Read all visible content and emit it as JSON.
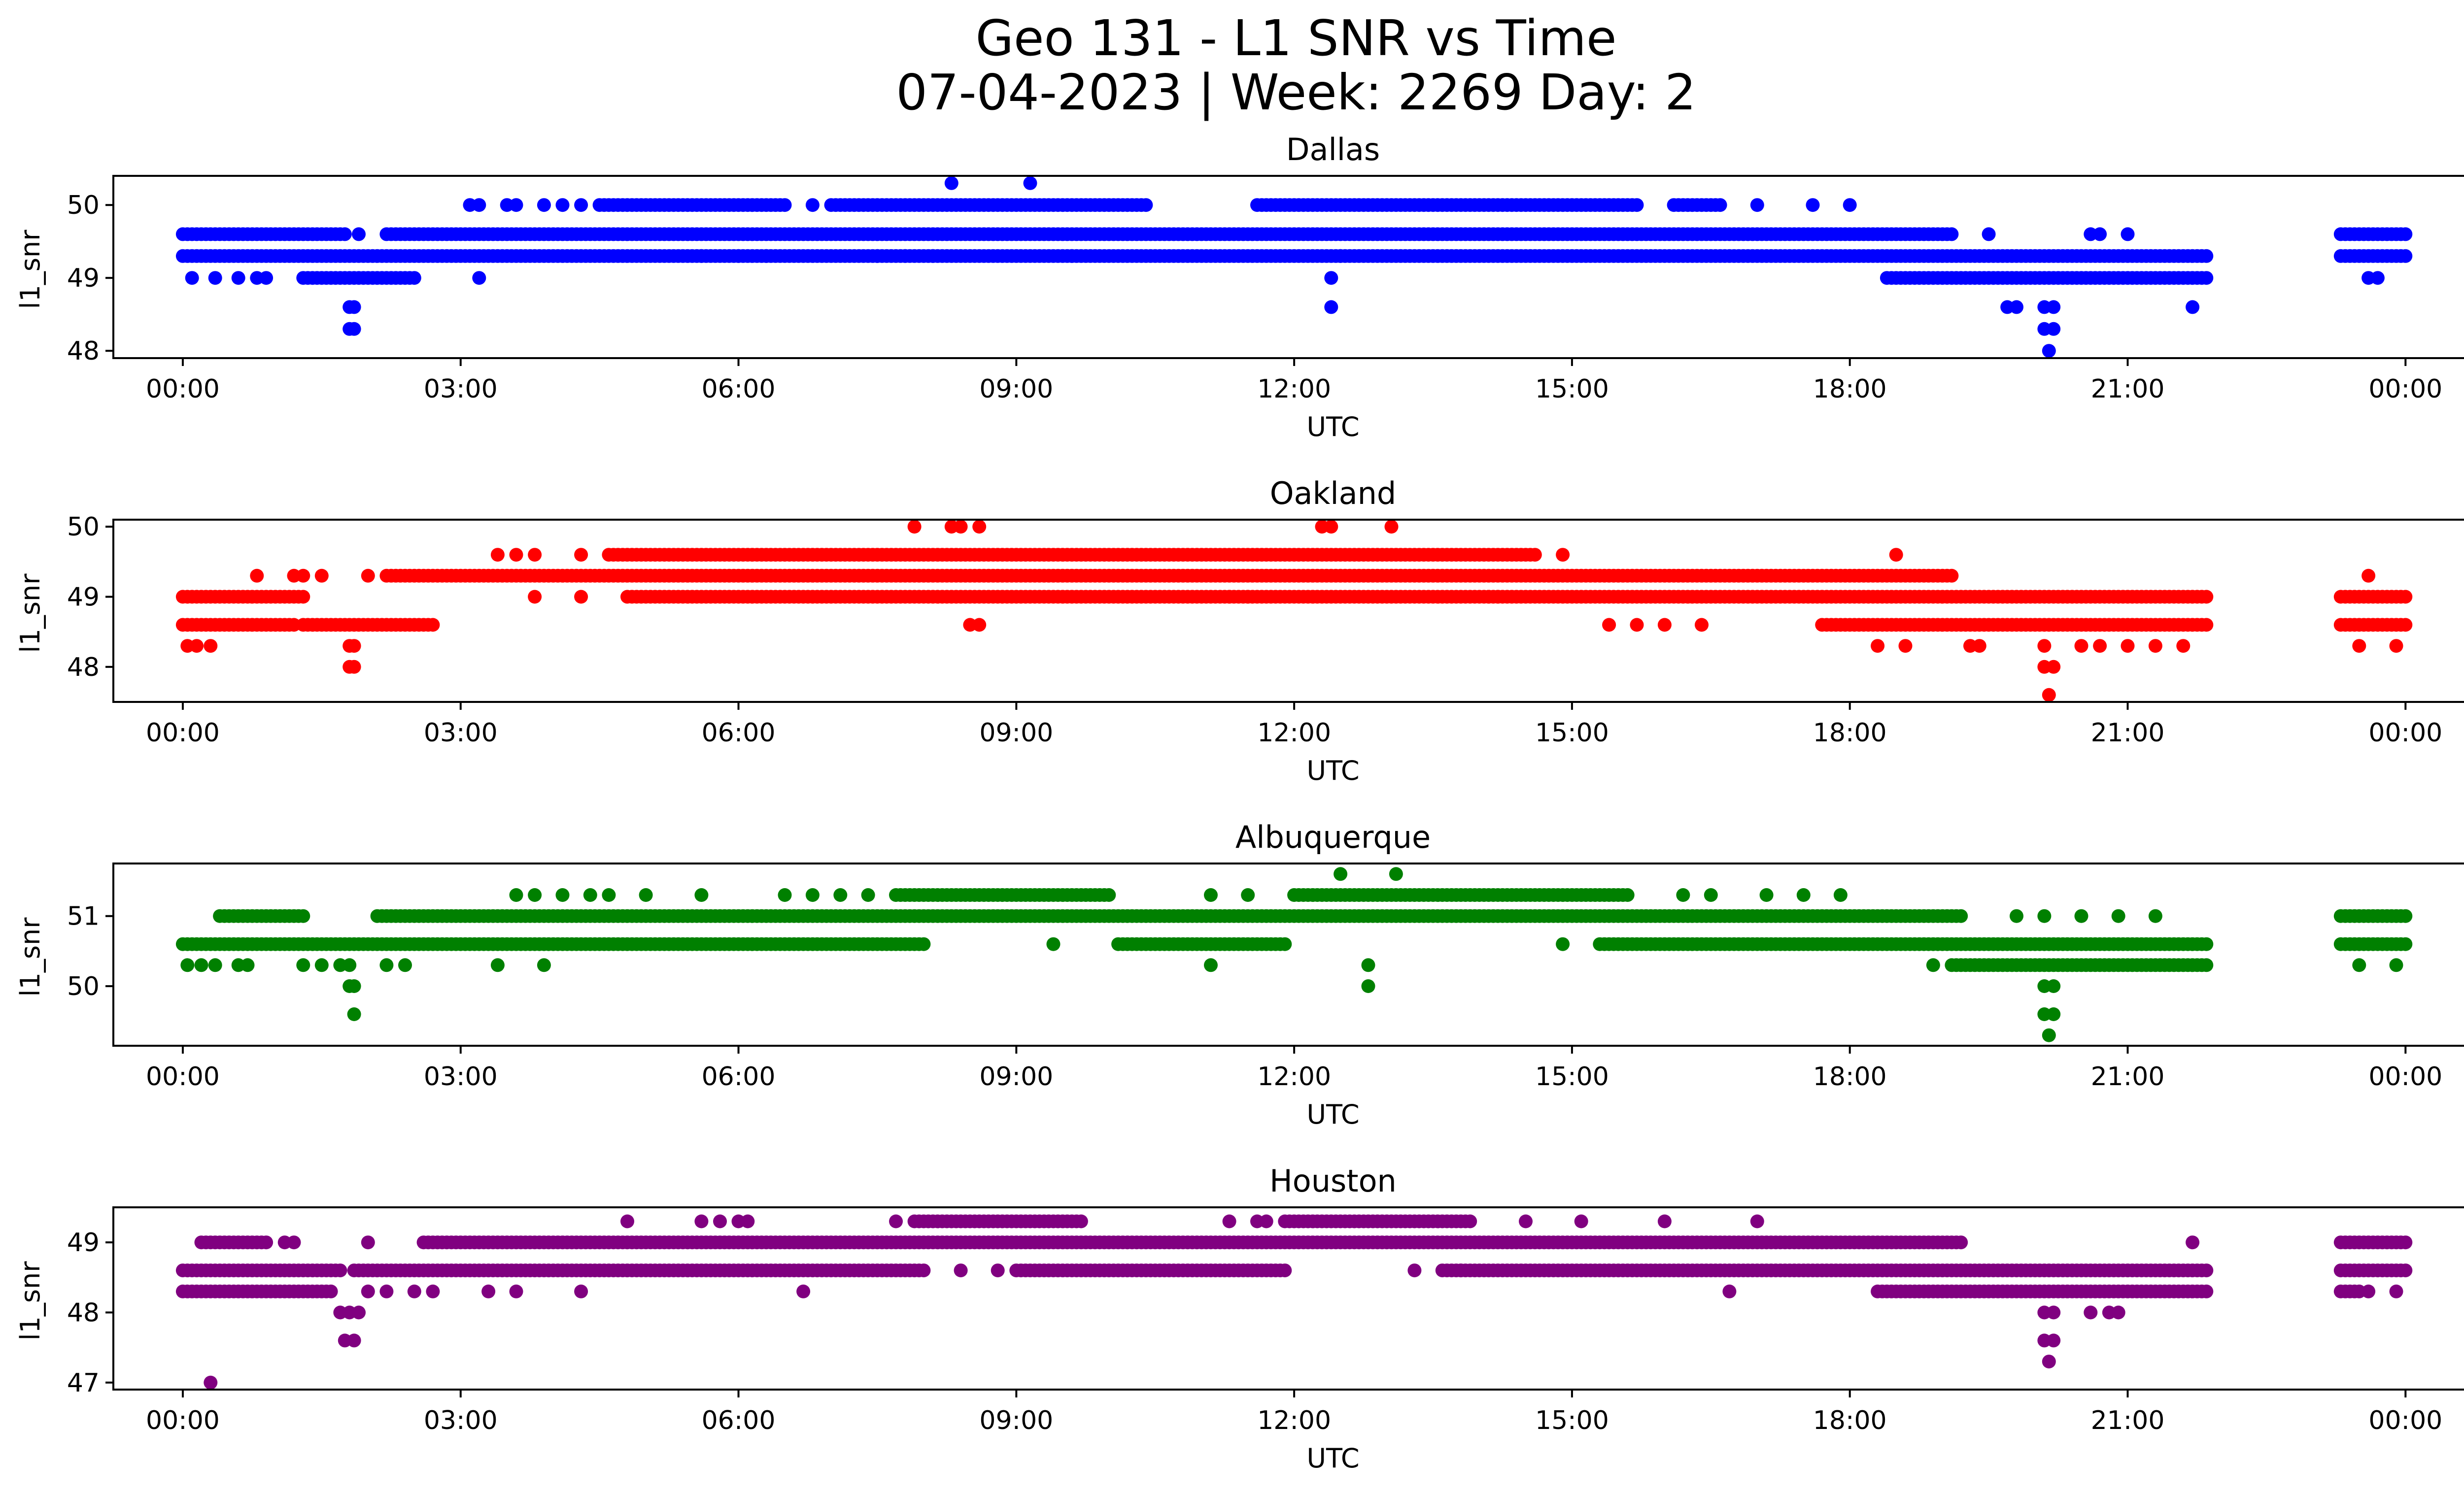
{
  "figure": {
    "title_line1": "Geo 131 - L1 SNR vs Time",
    "title_line2": "07-04-2023 | Week: 2269 Day: 2"
  },
  "chart_data": [
    {
      "type": "scatter",
      "title": "Dallas",
      "xlabel": "UTC",
      "ylabel": "l1_snr",
      "color": "#0000ff",
      "xlim_hours": [
        -0.75,
        25.6
      ],
      "ylim": [
        47.9,
        50.4
      ],
      "xticks_hours": [
        0,
        3,
        6,
        9,
        12,
        15,
        18,
        21,
        24
      ],
      "xtick_labels": [
        "00:00",
        "03:00",
        "06:00",
        "09:00",
        "12:00",
        "15:00",
        "18:00",
        "21:00",
        "00:00"
      ],
      "yticks": [
        48,
        49,
        50
      ],
      "ytick_labels": [
        "48",
        "49",
        "50"
      ],
      "bands": [
        {
          "y": 49.3,
          "segments": [
            [
              0,
              21.85
            ],
            [
              23.3,
              24.0
            ]
          ]
        },
        {
          "y": 49.6,
          "segments": [
            [
              0,
              1.75
            ],
            [
              2.2,
              19.1
            ],
            [
              23.3,
              24.0
            ]
          ]
        },
        {
          "y": 50.0,
          "segments": [
            [
              4.5,
              6.5
            ],
            [
              7.0,
              10.4
            ],
            [
              11.6,
              15.7
            ],
            [
              16.1,
              16.6
            ]
          ]
        },
        {
          "y": 49.0,
          "segments": [
            [
              1.3,
              2.5
            ],
            [
              18.4,
              21.85
            ]
          ]
        }
      ],
      "points": [
        [
          0.1,
          49.0
        ],
        [
          0.35,
          49.0
        ],
        [
          0.6,
          49.0
        ],
        [
          0.8,
          49.0
        ],
        [
          0.9,
          49.0
        ],
        [
          3.2,
          49.0
        ],
        [
          12.4,
          49.0
        ],
        [
          23.6,
          49.0
        ],
        [
          23.7,
          49.0
        ],
        [
          1.9,
          49.6
        ],
        [
          19.5,
          49.6
        ],
        [
          20.6,
          49.6
        ],
        [
          20.7,
          49.6
        ],
        [
          21.0,
          49.6
        ],
        [
          3.1,
          50.0
        ],
        [
          3.2,
          50.0
        ],
        [
          3.5,
          50.0
        ],
        [
          3.6,
          50.0
        ],
        [
          3.9,
          50.0
        ],
        [
          4.1,
          50.0
        ],
        [
          4.3,
          50.0
        ],
        [
          6.8,
          50.0
        ],
        [
          17.0,
          50.0
        ],
        [
          17.6,
          50.0
        ],
        [
          18.0,
          50.0
        ],
        [
          8.3,
          50.3
        ],
        [
          9.15,
          50.3
        ],
        [
          5.6,
          49.3
        ],
        [
          6.0,
          49.3
        ],
        [
          6.3,
          49.3
        ],
        [
          7.5,
          49.3
        ],
        [
          7.8,
          49.3
        ],
        [
          8.1,
          49.3
        ],
        [
          9.6,
          49.3
        ],
        [
          12.5,
          49.3
        ],
        [
          1.8,
          48.6
        ],
        [
          1.85,
          48.6
        ],
        [
          12.4,
          48.6
        ],
        [
          19.7,
          48.6
        ],
        [
          19.8,
          48.6
        ],
        [
          20.1,
          48.6
        ],
        [
          20.2,
          48.6
        ],
        [
          21.7,
          48.6
        ],
        [
          1.8,
          48.3
        ],
        [
          1.85,
          48.3
        ],
        [
          20.1,
          48.3
        ],
        [
          20.2,
          48.3
        ],
        [
          20.15,
          48.0
        ]
      ]
    },
    {
      "type": "scatter",
      "title": "Oakland",
      "xlabel": "UTC",
      "ylabel": "l1_snr",
      "color": "#ff0000",
      "xlim_hours": [
        -0.75,
        25.6
      ],
      "ylim": [
        47.5,
        50.1
      ],
      "xticks_hours": [
        0,
        3,
        6,
        9,
        12,
        15,
        18,
        21,
        24
      ],
      "xtick_labels": [
        "00:00",
        "03:00",
        "06:00",
        "09:00",
        "12:00",
        "15:00",
        "18:00",
        "21:00",
        "00:00"
      ],
      "yticks": [
        48,
        49,
        50
      ],
      "ytick_labels": [
        "48",
        "49",
        "50"
      ],
      "bands": [
        {
          "y": 49.0,
          "segments": [
            [
              0,
              1.3
            ],
            [
              4.8,
              21.85
            ],
            [
              23.3,
              24.0
            ]
          ]
        },
        {
          "y": 48.6,
          "segments": [
            [
              0,
              1.2
            ],
            [
              1.3,
              2.7
            ],
            [
              17.7,
              21.85
            ],
            [
              23.3,
              24.0
            ]
          ]
        },
        {
          "y": 49.3,
          "segments": [
            [
              2.2,
              19.1
            ]
          ]
        },
        {
          "y": 49.6,
          "segments": [
            [
              4.6,
              14.6
            ]
          ]
        }
      ],
      "points": [
        [
          0.05,
          48.3
        ],
        [
          0.15,
          48.3
        ],
        [
          0.3,
          48.3
        ],
        [
          1.8,
          48.3
        ],
        [
          1.85,
          48.3
        ],
        [
          1.8,
          48.0
        ],
        [
          1.85,
          48.0
        ],
        [
          0.8,
          49.3
        ],
        [
          1.2,
          49.3
        ],
        [
          1.3,
          49.3
        ],
        [
          1.5,
          49.3
        ],
        [
          2.0,
          49.3
        ],
        [
          23.6,
          49.3
        ],
        [
          3.4,
          49.6
        ],
        [
          3.6,
          49.6
        ],
        [
          3.8,
          49.6
        ],
        [
          4.3,
          49.6
        ],
        [
          14.9,
          49.6
        ],
        [
          18.5,
          49.6
        ],
        [
          7.9,
          50.0
        ],
        [
          8.3,
          50.0
        ],
        [
          8.4,
          50.0
        ],
        [
          8.6,
          50.0
        ],
        [
          12.3,
          50.0
        ],
        [
          12.4,
          50.0
        ],
        [
          13.05,
          50.0
        ],
        [
          8.5,
          48.6
        ],
        [
          8.6,
          48.6
        ],
        [
          15.4,
          48.6
        ],
        [
          15.7,
          48.6
        ],
        [
          16.0,
          48.6
        ],
        [
          16.4,
          48.6
        ],
        [
          18.3,
          48.3
        ],
        [
          18.6,
          48.3
        ],
        [
          19.3,
          48.3
        ],
        [
          19.4,
          48.3
        ],
        [
          20.1,
          48.3
        ],
        [
          20.5,
          48.3
        ],
        [
          20.7,
          48.3
        ],
        [
          21.0,
          48.3
        ],
        [
          21.3,
          48.3
        ],
        [
          21.6,
          48.3
        ],
        [
          23.5,
          48.3
        ],
        [
          23.9,
          48.3
        ],
        [
          20.1,
          48.0
        ],
        [
          20.2,
          48.0
        ],
        [
          20.15,
          47.6
        ],
        [
          3.8,
          49.0
        ],
        [
          4.3,
          49.0
        ],
        [
          14.1,
          49.0
        ],
        [
          14.2,
          49.0
        ],
        [
          11.3,
          49.0
        ],
        [
          11.5,
          49.0
        ]
      ]
    },
    {
      "type": "scatter",
      "title": "Albuquerque",
      "xlabel": "UTC",
      "ylabel": "l1_snr",
      "color": "#008000",
      "xlim_hours": [
        -0.75,
        25.6
      ],
      "ylim": [
        49.15,
        51.75
      ],
      "xticks_hours": [
        0,
        3,
        6,
        9,
        12,
        15,
        18,
        21,
        24
      ],
      "xtick_labels": [
        "00:00",
        "03:00",
        "06:00",
        "09:00",
        "12:00",
        "15:00",
        "18:00",
        "21:00",
        "00:00"
      ],
      "yticks": [
        50,
        51
      ],
      "ytick_labels": [
        "50",
        "51"
      ],
      "bands": [
        {
          "y": 50.6,
          "segments": [
            [
              0,
              8.0
            ],
            [
              10.1,
              11.9
            ],
            [
              15.3,
              21.85
            ],
            [
              23.3,
              24.0
            ]
          ]
        },
        {
          "y": 51.0,
          "segments": [
            [
              0.4,
              1.3
            ],
            [
              2.1,
              19.2
            ],
            [
              23.3,
              24.0
            ]
          ]
        },
        {
          "y": 51.3,
          "segments": [
            [
              7.7,
              10.0
            ],
            [
              12.0,
              15.6
            ]
          ]
        },
        {
          "y": 50.3,
          "segments": [
            [
              19.1,
              21.85
            ]
          ]
        }
      ],
      "points": [
        [
          0.05,
          50.3
        ],
        [
          0.2,
          50.3
        ],
        [
          0.35,
          50.3
        ],
        [
          0.6,
          50.3
        ],
        [
          0.7,
          50.3
        ],
        [
          1.3,
          50.3
        ],
        [
          1.5,
          50.3
        ],
        [
          1.7,
          50.3
        ],
        [
          1.8,
          50.3
        ],
        [
          2.2,
          50.3
        ],
        [
          2.4,
          50.3
        ],
        [
          3.4,
          50.3
        ],
        [
          3.9,
          50.3
        ],
        [
          11.1,
          50.3
        ],
        [
          12.8,
          50.3
        ],
        [
          18.9,
          50.3
        ],
        [
          23.5,
          50.3
        ],
        [
          23.9,
          50.3
        ],
        [
          1.8,
          50.0
        ],
        [
          1.85,
          50.0
        ],
        [
          12.8,
          50.0
        ],
        [
          20.1,
          50.0
        ],
        [
          20.2,
          50.0
        ],
        [
          1.85,
          49.6
        ],
        [
          20.1,
          49.6
        ],
        [
          20.2,
          49.6
        ],
        [
          20.15,
          49.3
        ],
        [
          3.6,
          51.3
        ],
        [
          3.8,
          51.3
        ],
        [
          4.1,
          51.3
        ],
        [
          4.4,
          51.3
        ],
        [
          4.6,
          51.3
        ],
        [
          5.0,
          51.3
        ],
        [
          5.6,
          51.3
        ],
        [
          6.5,
          51.3
        ],
        [
          6.8,
          51.3
        ],
        [
          7.1,
          51.3
        ],
        [
          7.4,
          51.3
        ],
        [
          11.1,
          51.3
        ],
        [
          11.5,
          51.3
        ],
        [
          16.2,
          51.3
        ],
        [
          16.5,
          51.3
        ],
        [
          17.1,
          51.3
        ],
        [
          17.5,
          51.3
        ],
        [
          17.9,
          51.3
        ],
        [
          12.5,
          51.6
        ],
        [
          13.1,
          51.6
        ],
        [
          9.4,
          50.6
        ],
        [
          14.9,
          50.6
        ],
        [
          19.8,
          51.0
        ],
        [
          20.1,
          51.0
        ],
        [
          20.5,
          51.0
        ],
        [
          20.9,
          51.0
        ],
        [
          21.3,
          51.0
        ]
      ]
    },
    {
      "type": "scatter",
      "title": "Houston",
      "xlabel": "UTC",
      "ylabel": "l1_snr",
      "color": "#800080",
      "xlim_hours": [
        -0.75,
        25.6
      ],
      "ylim": [
        46.9,
        49.5
      ],
      "xticks_hours": [
        0,
        3,
        6,
        9,
        12,
        15,
        18,
        21,
        24
      ],
      "xtick_labels": [
        "00:00",
        "03:00",
        "06:00",
        "09:00",
        "12:00",
        "15:00",
        "18:00",
        "21:00",
        "00:00"
      ],
      "yticks": [
        47,
        48,
        49
      ],
      "ytick_labels": [
        "47",
        "48",
        "49"
      ],
      "bands": [
        {
          "y": 48.6,
          "segments": [
            [
              0,
              1.7
            ],
            [
              1.85,
              8.0
            ],
            [
              9.0,
              11.9
            ],
            [
              13.6,
              21.85
            ],
            [
              23.3,
              24.0
            ]
          ]
        },
        {
          "y": 48.3,
          "segments": [
            [
              0,
              1.6
            ],
            [
              18.3,
              21.85
            ],
            [
              23.3,
              23.5
            ]
          ]
        },
        {
          "y": 49.0,
          "segments": [
            [
              0.2,
              0.9
            ],
            [
              2.6,
              19.2
            ],
            [
              23.3,
              24.0
            ]
          ]
        },
        {
          "y": 49.3,
          "segments": [
            [
              7.9,
              9.7
            ],
            [
              11.9,
              13.9
            ]
          ]
        }
      ],
      "points": [
        [
          1.1,
          49.0
        ],
        [
          1.2,
          49.0
        ],
        [
          2.0,
          49.0
        ],
        [
          21.7,
          49.0
        ],
        [
          4.8,
          49.3
        ],
        [
          5.6,
          49.3
        ],
        [
          5.8,
          49.3
        ],
        [
          6.0,
          49.3
        ],
        [
          6.1,
          49.3
        ],
        [
          7.7,
          49.3
        ],
        [
          11.3,
          49.3
        ],
        [
          11.6,
          49.3
        ],
        [
          11.7,
          49.3
        ],
        [
          14.5,
          49.3
        ],
        [
          15.1,
          49.3
        ],
        [
          16.0,
          49.3
        ],
        [
          17.0,
          49.3
        ],
        [
          1.7,
          48.0
        ],
        [
          1.8,
          48.0
        ],
        [
          1.9,
          48.0
        ],
        [
          1.75,
          47.6
        ],
        [
          1.85,
          47.6
        ],
        [
          20.1,
          48.0
        ],
        [
          20.2,
          48.0
        ],
        [
          20.6,
          48.0
        ],
        [
          20.8,
          48.0
        ],
        [
          20.9,
          48.0
        ],
        [
          20.1,
          47.6
        ],
        [
          20.2,
          47.6
        ],
        [
          20.15,
          47.3
        ],
        [
          0.3,
          47.0
        ],
        [
          2.0,
          48.3
        ],
        [
          2.2,
          48.3
        ],
        [
          2.5,
          48.3
        ],
        [
          2.7,
          48.3
        ],
        [
          3.3,
          48.3
        ],
        [
          3.6,
          48.3
        ],
        [
          4.3,
          48.3
        ],
        [
          6.7,
          48.3
        ],
        [
          16.7,
          48.3
        ],
        [
          23.6,
          48.3
        ],
        [
          23.9,
          48.3
        ],
        [
          8.4,
          48.6
        ],
        [
          8.8,
          48.6
        ],
        [
          13.3,
          48.6
        ],
        [
          13.8,
          48.6
        ]
      ]
    }
  ]
}
